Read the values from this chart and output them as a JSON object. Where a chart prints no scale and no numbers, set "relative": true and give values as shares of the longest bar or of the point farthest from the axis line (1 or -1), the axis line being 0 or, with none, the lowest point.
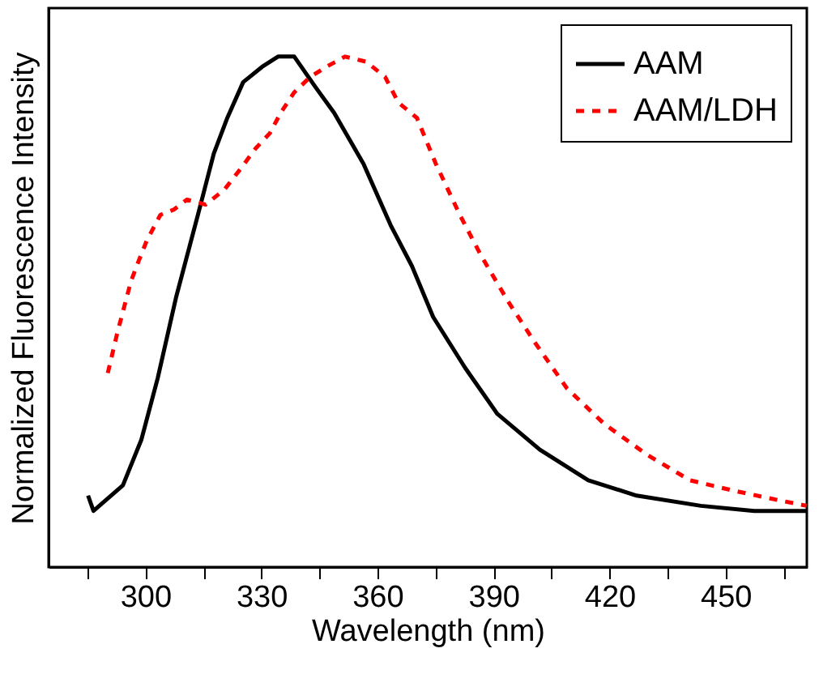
{
  "chart_data": {
    "type": "line",
    "xlabel": "Wavelength (nm)",
    "ylabel": "Normalized Fluorescence Intensity",
    "relative": true,
    "xlim": [
      275,
      471
    ],
    "xticks": [
      {
        "value": 285,
        "label": null
      },
      300,
      {
        "value": 315,
        "label": null
      },
      330,
      {
        "value": 345,
        "label": null
      },
      360,
      {
        "value": 375,
        "label": null
      },
      390,
      {
        "value": 405,
        "label": null
      },
      420,
      {
        "value": 435,
        "label": null
      },
      450,
      {
        "value": 465,
        "label": null
      }
    ],
    "tick_labels": "x",
    "grid": false,
    "legend": "top right",
    "series": [
      {
        "name": "AAM",
        "color": "#000000",
        "line_style": "solid",
        "x": [
          285.2,
          286.6,
          294.2,
          299.0,
          303.2,
          308.0,
          313.6,
          317.7,
          321.2,
          325.3,
          330.2,
          334.3,
          338.5,
          344.0,
          348.8,
          356.4,
          363.4,
          368.9,
          374.4,
          382.7,
          391.0,
          402.0,
          414.5,
          427.0,
          443.6,
          457.4,
          471.0
        ],
        "values": [
          0.14,
          0.11,
          0.16,
          0.25,
          0.37,
          0.53,
          0.69,
          0.81,
          0.88,
          0.95,
          0.98,
          1.0,
          1.0,
          0.94,
          0.89,
          0.79,
          0.67,
          0.59,
          0.49,
          0.39,
          0.3,
          0.23,
          0.17,
          0.14,
          0.12,
          0.11,
          0.11
        ]
      },
      {
        "name": "AAM/LDH",
        "color": "#ff0000",
        "line_style": "dashed",
        "x": [
          290.3,
          292.8,
          296.3,
          298.3,
          300.4,
          303.9,
          307.3,
          310.8,
          315.6,
          320.5,
          324.6,
          328.5,
          332.2,
          335.0,
          338.5,
          342.6,
          346.8,
          351.6,
          357.1,
          362.0,
          365.4,
          370.2,
          375.1,
          381.3,
          386.8,
          393.8,
          400.7,
          409.0,
          418.7,
          429.7,
          440.8,
          451.9,
          464.3,
          471.0
        ],
        "values": [
          0.38,
          0.46,
          0.56,
          0.6,
          0.64,
          0.69,
          0.7,
          0.72,
          0.71,
          0.74,
          0.78,
          0.82,
          0.85,
          0.89,
          0.93,
          0.96,
          0.98,
          1.0,
          0.99,
          0.96,
          0.91,
          0.88,
          0.79,
          0.69,
          0.61,
          0.52,
          0.44,
          0.35,
          0.28,
          0.22,
          0.17,
          0.15,
          0.13,
          0.12
        ]
      }
    ]
  }
}
